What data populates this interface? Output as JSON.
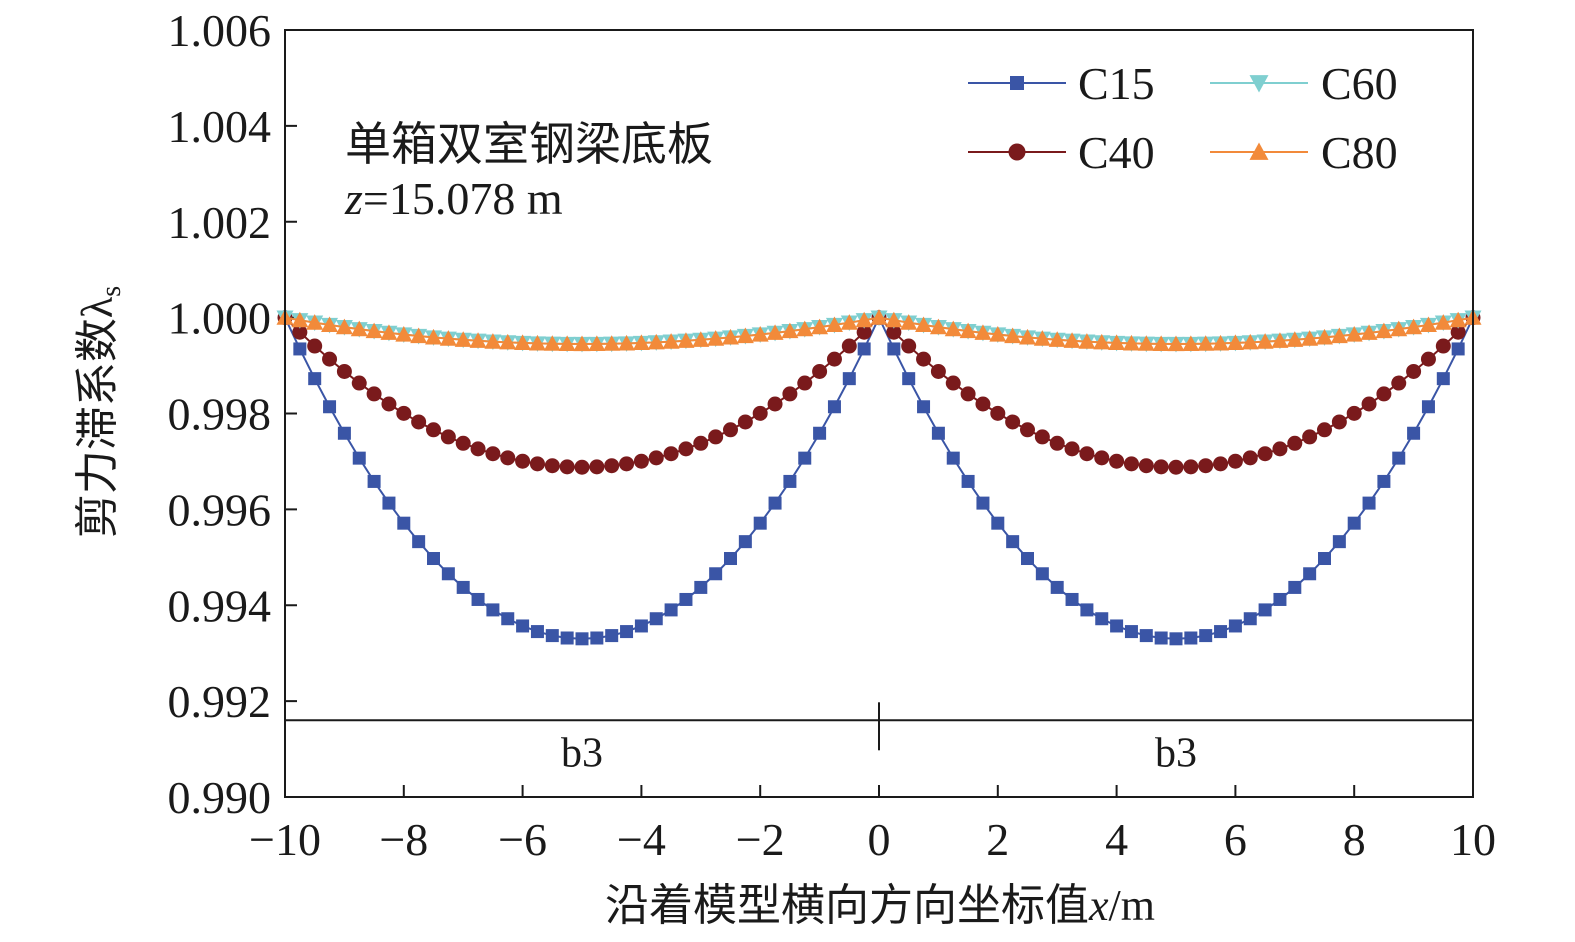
{
  "chart_data": {
    "type": "line",
    "title": "",
    "annotation": {
      "line1": "单箱双室钢梁底板",
      "line2_var": "z",
      "line2_rest": "=15.078 m"
    },
    "xlabel": {
      "prefix": "沿着模型横向方向坐标值",
      "var": "x",
      "suffix": "/m"
    },
    "ylabel": {
      "main": "剪力滞系数λ",
      "sub": "s"
    },
    "xlim": [
      -10,
      10
    ],
    "ylim": [
      0.99,
      1.006
    ],
    "xticks": [
      "−10",
      "−8",
      "−6",
      "−4",
      "−2",
      "0",
      "2",
      "4",
      "6",
      "8",
      "10"
    ],
    "xtick_values": [
      -10,
      -8,
      -6,
      -4,
      -2,
      0,
      2,
      4,
      6,
      8,
      10
    ],
    "yticks": [
      "1.006",
      "1.004",
      "1.002",
      "1.000",
      "0.998",
      "0.996",
      "0.994",
      "0.992",
      "0.990"
    ],
    "ytick_values": [
      1.006,
      1.004,
      1.002,
      1.0,
      0.998,
      0.996,
      0.994,
      0.992,
      0.99
    ],
    "section_divider_y": 0.9916,
    "section_labels": [
      {
        "text": "b3",
        "x": -5
      },
      {
        "text": "b3",
        "x": 5
      }
    ],
    "legend_position": "top-right",
    "series": [
      {
        "name": "C15",
        "color": "#3a55a6",
        "marker": "square",
        "min_value": 0.9933
      },
      {
        "name": "C40",
        "color": "#7a1a1c",
        "marker": "circle",
        "min_value": 0.99688
      },
      {
        "name": "C60",
        "color": "#7fcfd0",
        "marker": "triangle-down",
        "min_value": 0.99945
      },
      {
        "name": "C80",
        "color": "#f28a3a",
        "marker": "triangle-up",
        "min_value": 0.99945
      }
    ],
    "x_step": 0.25,
    "curve_shape": "each half-span (-10..0 and 0..10): value = 1 - (1 - min_value) * (1 - (|x mod 10 - 5| / 5)^2), reaching 1.000 at x = -10, 0, 10"
  }
}
